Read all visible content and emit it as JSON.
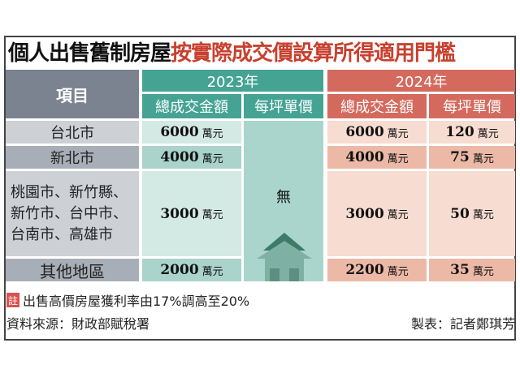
{
  "title": {
    "part1": "個人出售舊制房屋",
    "part2": "按實際成交價設算所得適用門檻"
  },
  "header": {
    "item": "項目",
    "year1": "2023年",
    "year2": "2024年",
    "total": "總成交金額",
    "per_ping": "每坪單價"
  },
  "unit": "萬元",
  "rows": [
    {
      "label": "台北市",
      "t2023": "6000",
      "t2024": "6000",
      "p2024": "120"
    },
    {
      "label": "新北市",
      "t2023": "4000",
      "t2024": "4000",
      "p2024": "75"
    },
    {
      "label": "桃園市、新竹縣、新竹市、台中市、台南市、高雄市",
      "t2023": "3000",
      "t2024": "3000",
      "p2024": "50"
    },
    {
      "label": "其他地區",
      "t2023": "2000",
      "t2024": "2200",
      "p2024": "35"
    }
  ],
  "p2023": "無",
  "note": {
    "badge": "註",
    "text": "出售高價房屋獲利率由17%調高至20%"
  },
  "source": "資料來源：財政部賦稅署",
  "credit": "製表：記者鄭琪芳",
  "colors": {
    "teal": "#45a394",
    "red": "#d46a5e",
    "gray": "#7b8390"
  }
}
